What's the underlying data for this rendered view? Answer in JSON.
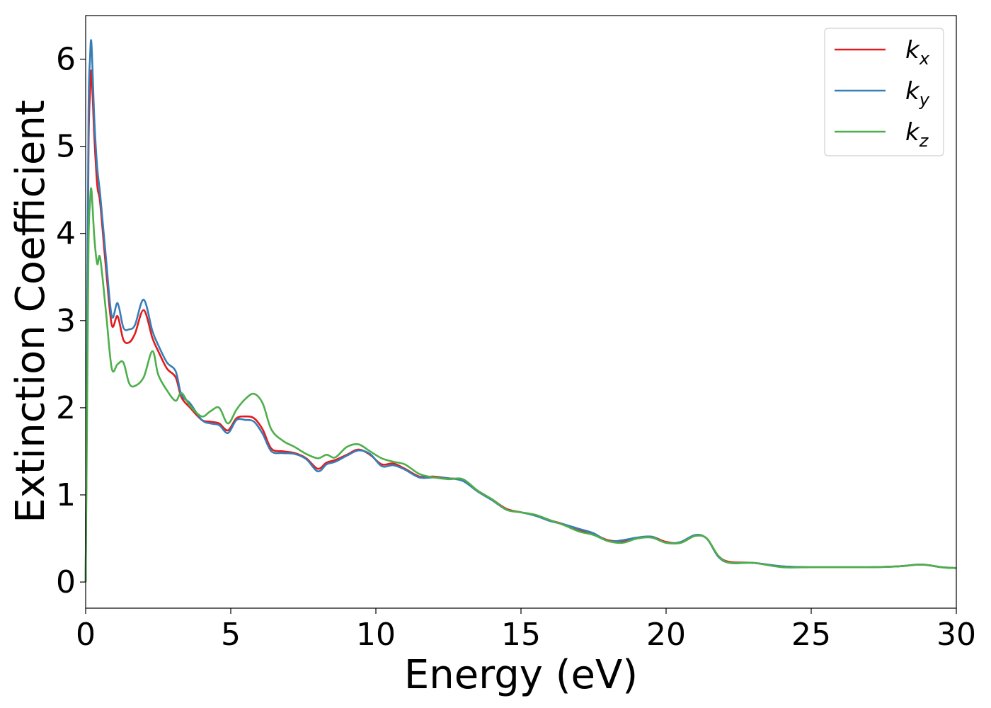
{
  "chart_data": {
    "type": "line",
    "xlabel": "Energy (eV)",
    "ylabel": "Extinction Coefficient",
    "xlim": [
      0,
      30
    ],
    "ylim": [
      -0.3,
      6.5
    ],
    "xticks": [
      0,
      5,
      10,
      15,
      20,
      25,
      30
    ],
    "yticks": [
      0,
      1,
      2,
      3,
      4,
      5,
      6
    ],
    "grid": false,
    "legend_position": "top-right",
    "series": [
      {
        "name": "k",
        "subscript": "x",
        "color": "#e41a1c",
        "x": [
          0,
          0.05,
          0.1,
          0.15,
          0.2,
          0.3,
          0.4,
          0.5,
          0.7,
          0.9,
          1.1,
          1.3,
          1.5,
          1.7,
          2.0,
          2.3,
          2.5,
          2.8,
          3.1,
          3.3,
          3.6,
          4.0,
          4.3,
          4.6,
          4.9,
          5.2,
          5.5,
          5.8,
          6.1,
          6.4,
          6.8,
          7.2,
          7.6,
          8.0,
          8.3,
          8.6,
          9.0,
          9.4,
          9.8,
          10.2,
          10.6,
          11.0,
          11.5,
          12.0,
          12.5,
          13.0,
          13.5,
          14.0,
          14.5,
          15.0,
          15.5,
          16.0,
          16.5,
          17.0,
          17.5,
          18.0,
          18.5,
          19.0,
          19.5,
          20.0,
          20.5,
          21.0,
          21.4,
          21.8,
          22.2,
          23.0,
          24.0,
          25.0,
          26.0,
          27.0,
          28.0,
          28.8,
          29.5,
          30.0
        ],
        "y": [
          0.0,
          2.5,
          5.0,
          5.6,
          5.85,
          5.1,
          4.55,
          4.35,
          3.6,
          2.95,
          3.05,
          2.78,
          2.75,
          2.85,
          3.12,
          2.8,
          2.65,
          2.45,
          2.35,
          2.12,
          2.0,
          1.86,
          1.84,
          1.82,
          1.74,
          1.88,
          1.9,
          1.88,
          1.75,
          1.53,
          1.5,
          1.48,
          1.42,
          1.3,
          1.37,
          1.4,
          1.46,
          1.52,
          1.46,
          1.35,
          1.36,
          1.3,
          1.21,
          1.21,
          1.19,
          1.17,
          1.05,
          0.95,
          0.84,
          0.8,
          0.77,
          0.71,
          0.66,
          0.6,
          0.55,
          0.48,
          0.47,
          0.5,
          0.52,
          0.46,
          0.45,
          0.53,
          0.5,
          0.3,
          0.23,
          0.22,
          0.18,
          0.17,
          0.17,
          0.17,
          0.18,
          0.2,
          0.17,
          0.16
        ]
      },
      {
        "name": "k",
        "subscript": "y",
        "color": "#377eb8",
        "x": [
          0,
          0.05,
          0.1,
          0.15,
          0.2,
          0.3,
          0.4,
          0.5,
          0.7,
          0.9,
          1.1,
          1.3,
          1.5,
          1.7,
          2.0,
          2.3,
          2.5,
          2.8,
          3.1,
          3.3,
          3.6,
          4.0,
          4.3,
          4.6,
          4.9,
          5.2,
          5.5,
          5.8,
          6.1,
          6.4,
          6.8,
          7.2,
          7.6,
          8.0,
          8.3,
          8.6,
          9.0,
          9.4,
          9.8,
          10.2,
          10.6,
          11.0,
          11.5,
          12.0,
          12.5,
          13.0,
          13.5,
          14.0,
          14.5,
          15.0,
          15.5,
          16.0,
          16.5,
          17.0,
          17.5,
          18.0,
          18.5,
          19.0,
          19.5,
          20.0,
          20.5,
          21.0,
          21.4,
          21.8,
          22.2,
          23.0,
          24.0,
          25.0,
          26.0,
          27.0,
          28.0,
          28.8,
          29.5,
          30.0
        ],
        "y": [
          0.0,
          2.8,
          5.4,
          6.0,
          6.18,
          5.3,
          4.75,
          4.45,
          3.72,
          3.05,
          3.2,
          2.92,
          2.9,
          2.95,
          3.24,
          2.88,
          2.72,
          2.52,
          2.42,
          2.15,
          2.05,
          1.86,
          1.82,
          1.8,
          1.71,
          1.86,
          1.86,
          1.84,
          1.7,
          1.5,
          1.48,
          1.47,
          1.41,
          1.27,
          1.35,
          1.38,
          1.45,
          1.51,
          1.47,
          1.33,
          1.34,
          1.29,
          1.2,
          1.2,
          1.19,
          1.16,
          1.04,
          0.94,
          0.83,
          0.8,
          0.76,
          0.7,
          0.66,
          0.61,
          0.56,
          0.47,
          0.48,
          0.51,
          0.52,
          0.45,
          0.46,
          0.54,
          0.5,
          0.29,
          0.22,
          0.22,
          0.18,
          0.17,
          0.17,
          0.17,
          0.18,
          0.2,
          0.17,
          0.16
        ]
      },
      {
        "name": "k",
        "subscript": "z",
        "color": "#4daf4a",
        "x": [
          0,
          0.05,
          0.1,
          0.15,
          0.2,
          0.3,
          0.4,
          0.5,
          0.7,
          0.9,
          1.1,
          1.3,
          1.5,
          1.7,
          2.0,
          2.3,
          2.5,
          2.8,
          3.1,
          3.3,
          3.6,
          4.0,
          4.3,
          4.6,
          4.9,
          5.2,
          5.5,
          5.8,
          6.1,
          6.4,
          6.8,
          7.2,
          7.6,
          8.0,
          8.3,
          8.6,
          9.0,
          9.4,
          9.8,
          10.2,
          10.6,
          11.0,
          11.5,
          12.0,
          12.5,
          13.0,
          13.5,
          14.0,
          14.5,
          15.0,
          15.5,
          16.0,
          16.5,
          17.0,
          17.5,
          18.0,
          18.5,
          19.0,
          19.5,
          20.0,
          20.5,
          21.0,
          21.4,
          21.8,
          22.2,
          23.0,
          24.0,
          25.0,
          26.0,
          27.0,
          28.0,
          28.8,
          29.5,
          30.0
        ],
        "y": [
          0.0,
          2.0,
          3.9,
          4.35,
          4.5,
          3.95,
          3.65,
          3.72,
          3.1,
          2.45,
          2.5,
          2.52,
          2.28,
          2.25,
          2.35,
          2.65,
          2.38,
          2.2,
          2.08,
          2.17,
          2.02,
          1.9,
          1.96,
          2.0,
          1.82,
          1.98,
          2.1,
          2.16,
          2.05,
          1.75,
          1.62,
          1.55,
          1.47,
          1.42,
          1.46,
          1.43,
          1.55,
          1.58,
          1.5,
          1.42,
          1.38,
          1.35,
          1.24,
          1.2,
          1.18,
          1.18,
          1.05,
          0.95,
          0.83,
          0.8,
          0.77,
          0.71,
          0.65,
          0.58,
          0.54,
          0.47,
          0.45,
          0.5,
          0.51,
          0.45,
          0.45,
          0.53,
          0.5,
          0.3,
          0.22,
          0.22,
          0.17,
          0.17,
          0.17,
          0.17,
          0.18,
          0.2,
          0.17,
          0.16
        ]
      }
    ]
  }
}
